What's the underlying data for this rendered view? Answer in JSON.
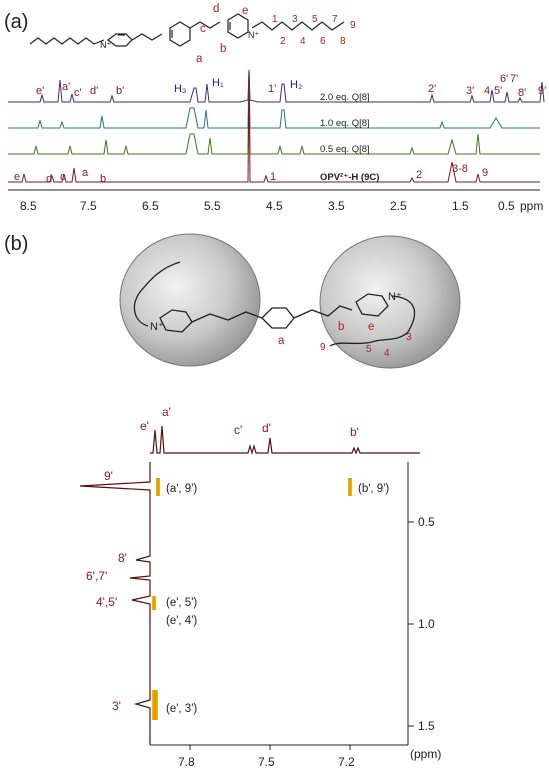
{
  "panel_a": {
    "label": "(a)",
    "struct_letters": [
      "a",
      "b",
      "c",
      "d",
      "e"
    ],
    "struct_numbers": [
      "1",
      "2",
      "3",
      "4",
      "5",
      "6",
      "7",
      "8",
      "9"
    ],
    "spectra": [
      {
        "label": "2.0 eq. Q[8]",
        "color": "#3b2a7a"
      },
      {
        "label": "1.0 eq. Q[8]",
        "color": "#1f7a7a"
      },
      {
        "label": "0.5 eq. Q[8]",
        "color": "#3d7a1a"
      },
      {
        "label": "OPV²⁺-H (9C)",
        "color": "#7a1a1a"
      }
    ],
    "peak_labels_top": [
      "e'",
      "a'",
      "c'",
      "d'",
      "b'",
      "H₃",
      "H₁",
      "1'",
      "H₂",
      "2'",
      "3'",
      "4",
      "5'",
      "6'",
      "7'",
      "8'",
      "9'"
    ],
    "peak_labels_bottom": [
      "e",
      "d",
      "c",
      "a",
      "b",
      "1",
      "2",
      "3-8",
      "9"
    ],
    "x_ticks": [
      "8.5",
      "7.5",
      "6.5",
      "5.5",
      "4.5",
      "3.5",
      "2.5",
      "1.5",
      "0.5"
    ],
    "x_unit": "ppm"
  },
  "panel_b": {
    "label": "(b)",
    "struct_letters": [
      "a",
      "b",
      "e"
    ],
    "struct_numbers": [
      "9",
      "5",
      "4",
      "3"
    ],
    "top_proj_labels": [
      "e'",
      "a'",
      "c'",
      "d'",
      "b'"
    ],
    "left_proj_labels": [
      "9'",
      "8'",
      "6',7'",
      "4',5'",
      "3'"
    ],
    "cross_peaks": [
      "(a', 9')",
      "(b', 9')",
      "(e', 5')",
      "(e', 4')",
      "(e', 3')"
    ],
    "y_ticks": [
      "0.5",
      "1.0",
      "1.5"
    ],
    "x_ticks": [
      "7.8",
      "7.5",
      "7.2"
    ],
    "unit": "(ppm)"
  }
}
